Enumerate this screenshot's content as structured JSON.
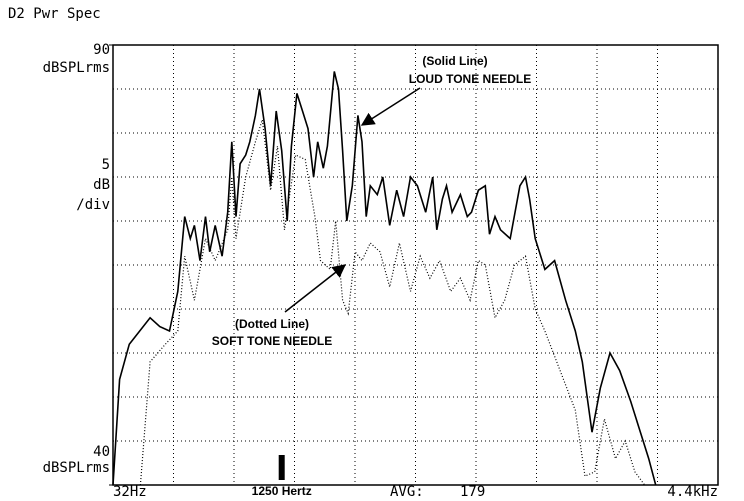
{
  "chart_data": {
    "type": "line",
    "title": "D2 Pwr Spec",
    "xlim": [
      32,
      4400
    ],
    "ylim": [
      40,
      90
    ],
    "xticks": [
      {
        "value": 32,
        "label": "32Hz"
      },
      {
        "value": 4400,
        "label": "4.4kHz"
      }
    ],
    "yticks": [
      40,
      90
    ],
    "y_unit": "dBSPLrms",
    "db_per_div": 5,
    "db_per_div_unit": "dB",
    "db_per_div_suffix": "/div",
    "x_divisions": 10,
    "grid": true,
    "marker": {
      "value": 1250,
      "label": "1250 Hertz"
    },
    "avg_label": "AVG:",
    "avg_count": 179,
    "annotations": [
      {
        "text": "(Solid Line)"
      },
      {
        "text": "LOUD TONE NEEDLE"
      },
      {
        "text": "(Dotted Line)"
      },
      {
        "text": "SOFT TONE NEEDLE"
      }
    ],
    "series": [
      {
        "color": "#000000",
        "dash": "solid",
        "x": [
          32,
          80,
          150,
          300,
          370,
          440,
          500,
          550,
          590,
          620,
          660,
          700,
          730,
          770,
          820,
          860,
          890,
          920,
          950,
          990,
          1020,
          1060,
          1090,
          1130,
          1170,
          1210,
          1250,
          1290,
          1320,
          1360,
          1400,
          1440,
          1480,
          1510,
          1550,
          1580,
          1630,
          1660,
          1690,
          1720,
          1760,
          1800,
          1830,
          1860,
          1890,
          1940,
          1980,
          2030,
          2080,
          2130,
          2180,
          2230,
          2290,
          2340,
          2370,
          2410,
          2440,
          2480,
          2540,
          2590,
          2620,
          2670,
          2720,
          2750,
          2790,
          2830,
          2900,
          2970,
          3010,
          3040,
          3080,
          3150,
          3220,
          3300,
          3370,
          3420,
          3490,
          3550,
          3620,
          3690,
          3770,
          3840,
          3900,
          3950
        ],
        "values": [
          40,
          52,
          56,
          59,
          58,
          57.5,
          62,
          70.5,
          68,
          69.5,
          65.5,
          70.5,
          66.5,
          69.5,
          66,
          71,
          79,
          70.5,
          76.5,
          77.5,
          79,
          82,
          85,
          80.5,
          74,
          82.5,
          78,
          70,
          78.5,
          84.5,
          82.5,
          80.5,
          75,
          79,
          76,
          78.5,
          87,
          85,
          78,
          70,
          74,
          82,
          79,
          70.5,
          74,
          73,
          75,
          69.5,
          73.5,
          70.5,
          75,
          74,
          71,
          75,
          69,
          72.5,
          74,
          71,
          73,
          70.5,
          71,
          73.5,
          74,
          68.5,
          70.5,
          69,
          68,
          74,
          75,
          72.5,
          68,
          64.5,
          65.5,
          61,
          57.5,
          54,
          46,
          51,
          55,
          53,
          49.5,
          46,
          43,
          40
        ]
      },
      {
        "color": "#000000",
        "dash": "dotted",
        "x": [
          230,
          300,
          410,
          500,
          550,
          620,
          700,
          770,
          860,
          890,
          920,
          990,
          1060,
          1110,
          1170,
          1220,
          1270,
          1350,
          1420,
          1490,
          1530,
          1600,
          1640,
          1690,
          1730,
          1780,
          1830,
          1890,
          1960,
          2030,
          2100,
          2180,
          2250,
          2320,
          2390,
          2470,
          2540,
          2610,
          2670,
          2720,
          2790,
          2860,
          2930,
          3010,
          3080,
          3150,
          3260,
          3370,
          3440,
          3510,
          3580,
          3660,
          3730,
          3800,
          3870
        ],
        "values": [
          40,
          54,
          56,
          57.5,
          66,
          61,
          68,
          65.5,
          69,
          75,
          68,
          75,
          79,
          81.5,
          73.5,
          78.5,
          69,
          77.5,
          77,
          70.5,
          65.5,
          64.5,
          70,
          61,
          59.5,
          66.5,
          65.5,
          67.5,
          66.5,
          62.5,
          67.5,
          62,
          66,
          63.5,
          65.5,
          62,
          63.5,
          61,
          65.5,
          65,
          59,
          61,
          65,
          66,
          60,
          57.5,
          53,
          48.5,
          41,
          41.5,
          47.5,
          43,
          45,
          41.5,
          40
        ]
      }
    ]
  }
}
